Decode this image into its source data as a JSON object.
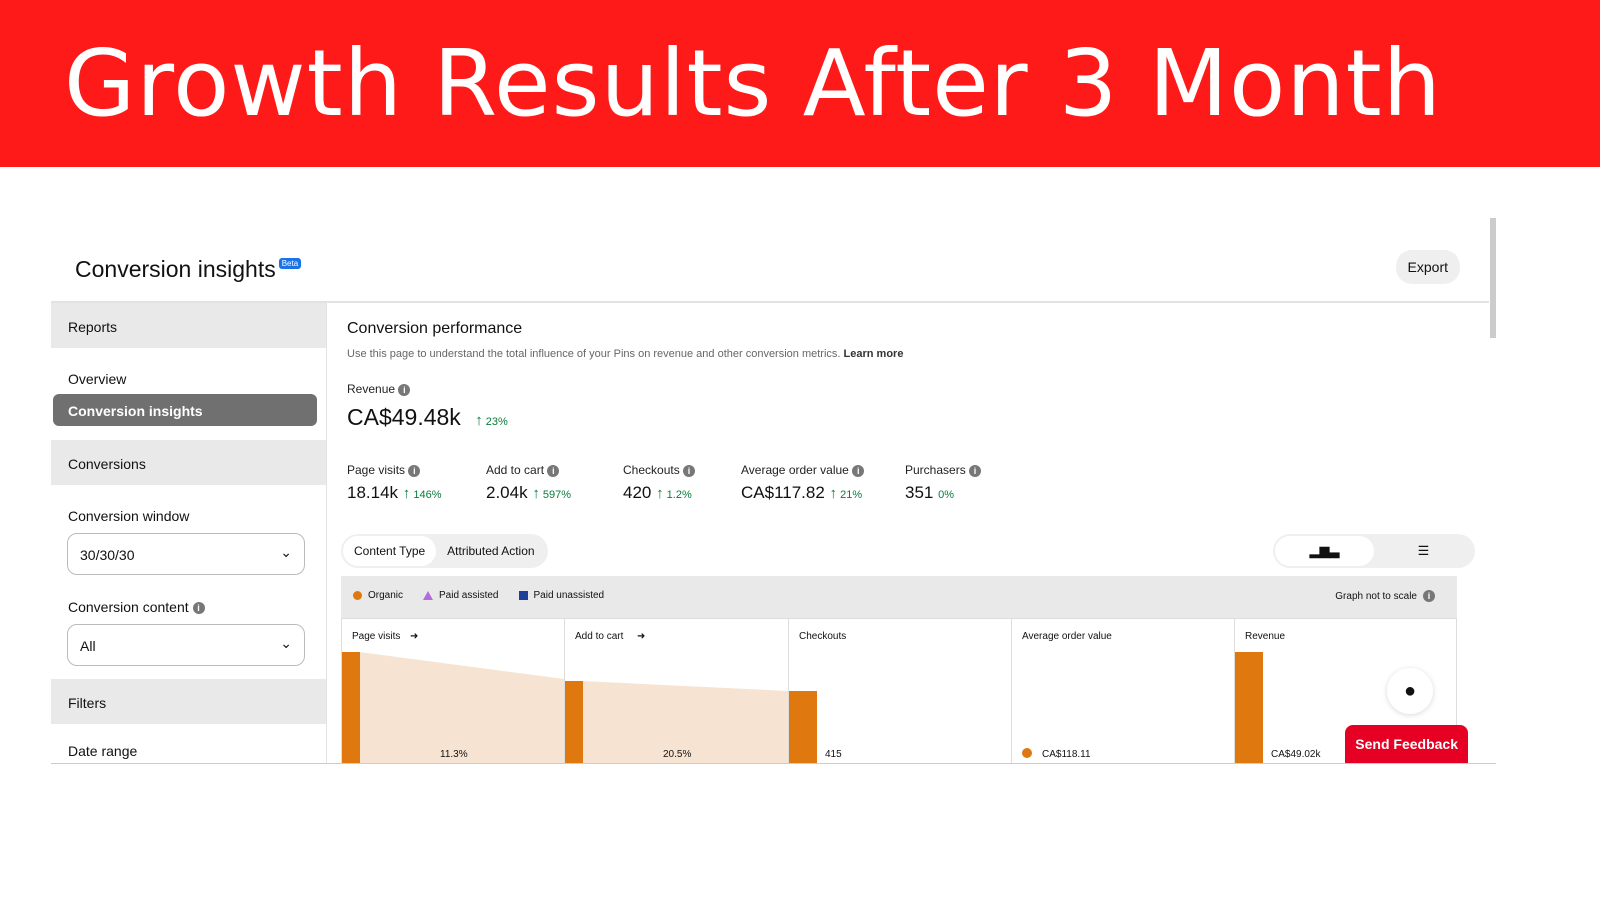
{
  "banner": {
    "title": "Growth Results After 3 Month"
  },
  "header": {
    "title": "Conversion insights",
    "badge": "Beta",
    "export": "Export"
  },
  "sidebar": {
    "reports": "Reports",
    "overview": "Overview",
    "conversion_insights": "Conversion insights",
    "conversions": "Conversions",
    "conversion_window_label": "Conversion window",
    "conversion_window_value": "30/30/30",
    "conversion_content_label": "Conversion content",
    "conversion_content_value": "All",
    "filters": "Filters",
    "date_range": "Date range"
  },
  "main": {
    "title": "Conversion performance",
    "description": "Use this page to understand the total influence of your Pins on revenue and other conversion metrics.",
    "learn_more": "Learn more",
    "revenue": {
      "label": "Revenue",
      "value": "CA$49.48k",
      "change": "23%",
      "trend": "up"
    },
    "metrics": [
      {
        "label": "Page visits",
        "value": "18.14k",
        "change": "146%",
        "trend": "up"
      },
      {
        "label": "Add to cart",
        "value": "2.04k",
        "change": "597%",
        "trend": "up"
      },
      {
        "label": "Checkouts",
        "value": "420",
        "change": "1.2%",
        "trend": "up"
      },
      {
        "label": "Average order value",
        "value": "CA$117.82",
        "change": "21%",
        "trend": "up"
      },
      {
        "label": "Purchasers",
        "value": "351",
        "change": "0%",
        "trend": "none"
      }
    ],
    "tabs": [
      "Content Type",
      "Attributed Action"
    ],
    "active_tab": "Content Type"
  },
  "chart": {
    "legend": [
      {
        "name": "Organic",
        "color": "#e07810"
      },
      {
        "name": "Paid assisted",
        "color": "#b36be0"
      },
      {
        "name": "Paid unassisted",
        "color": "#1f3f9a"
      }
    ],
    "note": "Graph not to scale",
    "columns": [
      {
        "label": "Page visits",
        "value": "11.3%"
      },
      {
        "label": "Add to cart",
        "value": "20.5%"
      },
      {
        "label": "Checkouts",
        "value": "415"
      },
      {
        "label": "Average order value",
        "value": "CA$118.11"
      },
      {
        "label": "Revenue",
        "value": "CA$49.02k"
      }
    ]
  },
  "feedback": "Send Feedback"
}
